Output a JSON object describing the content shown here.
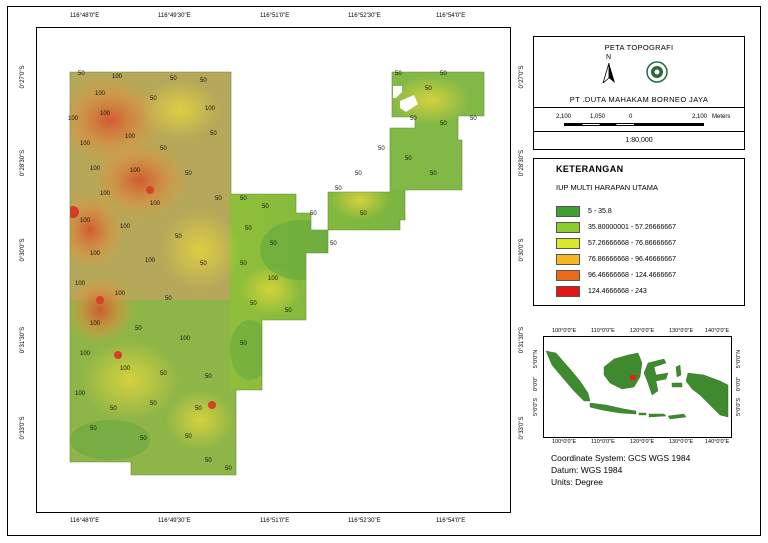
{
  "map": {
    "lon_ticks": [
      "116°48'0\"E",
      "116°49'30\"E",
      "116°51'0\"E",
      "116°52'30\"E",
      "116°54'0\"E"
    ],
    "lat_ticks": [
      "0°27'0\"S",
      "0°28'30\"S",
      "0°30'0\"S",
      "0°31'30\"S",
      "0°33'0\"S"
    ],
    "contour_labels": [
      "50",
      "100"
    ]
  },
  "title_panel": {
    "title": "PETA TOPOGRAFI",
    "north": "N",
    "company": "PT .DUTA MAHAKAM BORNEO JAYA",
    "scale_ticks": [
      "2,100",
      "1,050",
      "0",
      "2,100"
    ],
    "scale_unit": "Meters",
    "scale_ratio": "1:80,000"
  },
  "legend": {
    "heading": "KETERANGAN",
    "layer": "IUP MULTI HARAPAN UTAMA",
    "classes": [
      {
        "label": "5 - 35.8",
        "color": "#3fa02f"
      },
      {
        "label": "35.80000001 - 57.26666667",
        "color": "#8ccc2c"
      },
      {
        "label": "57.26666668 - 76.86666667",
        "color": "#dce82c"
      },
      {
        "label": "76.86666668 - 96.46666667",
        "color": "#f6b822"
      },
      {
        "label": "96.46666668 - 124.4666667",
        "color": "#ea6a1a"
      },
      {
        "label": "124.4666668 - 243",
        "color": "#e21414"
      }
    ]
  },
  "inset": {
    "lon_ticks": [
      "100°0'0\"E",
      "110°0'0\"E",
      "120°0'0\"E",
      "130°0'0\"E",
      "140°0'0\"E"
    ],
    "lat_ticks": [
      "5°0'0\"N",
      "0°0'0\"",
      "5°0'0\"S"
    ]
  },
  "info": {
    "coord_system": "Coordinate System: GCS WGS 1984",
    "datum": "Datum: WGS 1984",
    "units": "Units: Degree"
  }
}
